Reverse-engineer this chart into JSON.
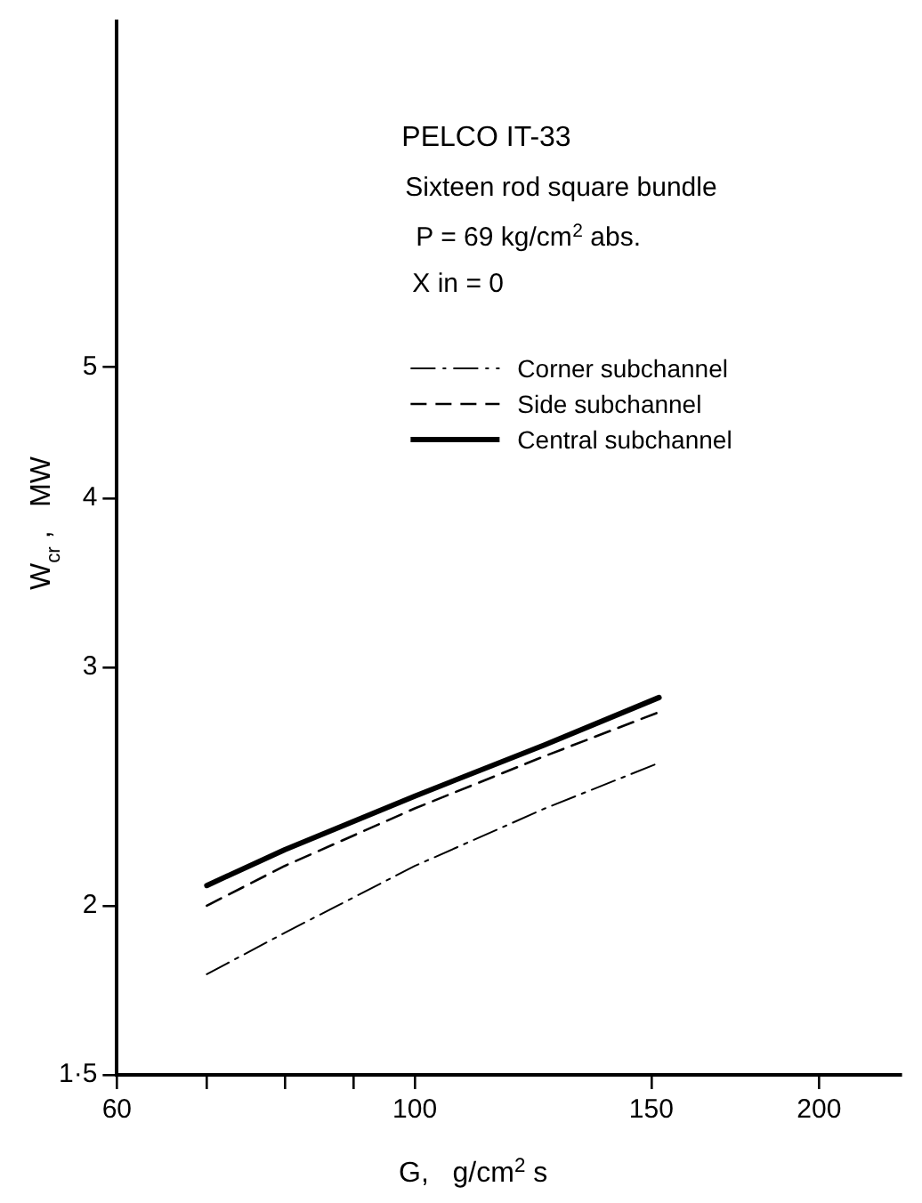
{
  "chart_data": {
    "type": "line",
    "title": "PELCO IT-33",
    "subtitle": "Sixteen rod square bundle",
    "annotations": [
      "P = 69 kg/cm$^{2}$ abs.",
      "X in = 0"
    ],
    "xlabel": "G,   g/cm$^{2}$ s",
    "ylabel": "W$_{cr}$ ,   MW",
    "x": [
      70,
      80,
      100,
      125,
      152
    ],
    "series": [
      {
        "name": "Corner subchannel",
        "color": "#000000",
        "line_style": "dashdot",
        "values": [
          1.78,
          1.91,
          2.14,
          2.36,
          2.55
        ]
      },
      {
        "name": "Side subchannel",
        "color": "#000000",
        "line_style": "dashed",
        "values": [
          2.0,
          2.14,
          2.36,
          2.58,
          2.78
        ]
      },
      {
        "name": "Central subchannel",
        "color": "#000000",
        "line_style": "solid",
        "values": [
          2.07,
          2.2,
          2.41,
          2.63,
          2.85
        ]
      }
    ],
    "log": "xy",
    "xlim": [
      60,
      230
    ],
    "ylim": [
      1.5,
      9
    ],
    "xticks": [
      60,
      {
        "value": 70,
        "label": null
      },
      {
        "value": 80,
        "label": null
      },
      {
        "value": 90,
        "label": null
      },
      100,
      150,
      200
    ],
    "yticks": [
      {
        "value": 1.5,
        "label": "1·5"
      },
      2,
      3,
      4,
      5
    ],
    "grid": false,
    "legend": "top right",
    "marker": "none"
  }
}
